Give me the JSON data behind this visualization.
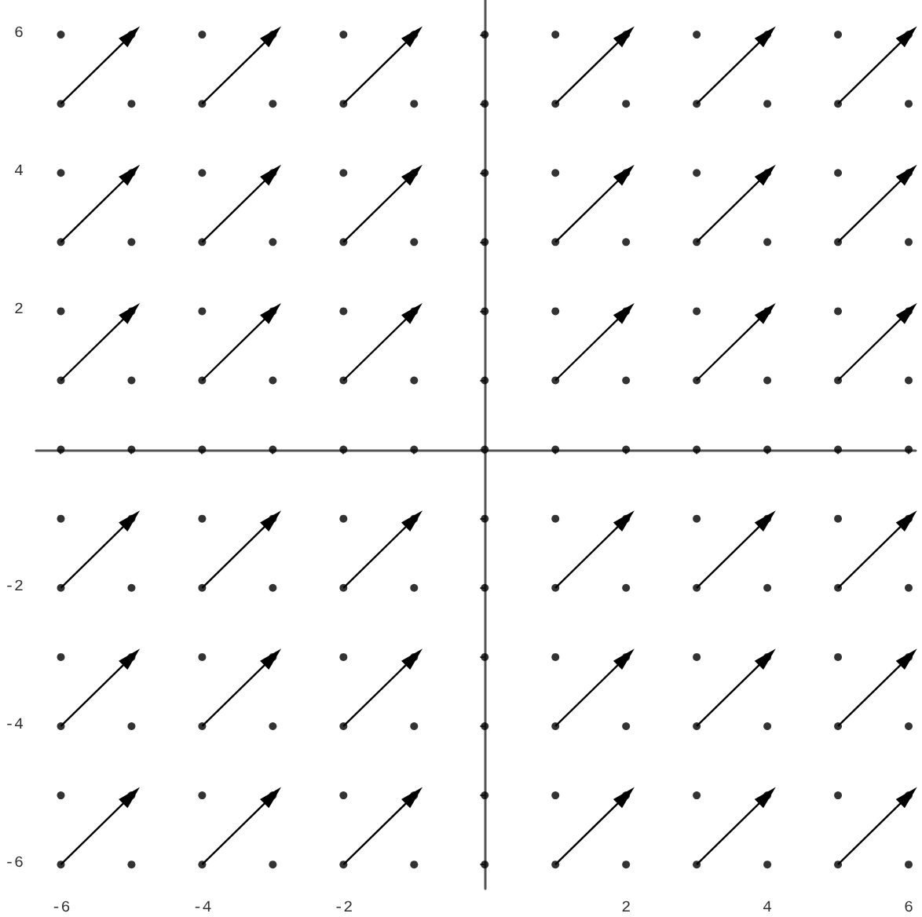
{
  "chart_data": {
    "type": "scatter",
    "xlim": [
      -6.35,
      6.1
    ],
    "ylim": [
      -6.35,
      6.5
    ],
    "xticks": [
      -6,
      {
        "value": -5,
        "label": null
      },
      -4,
      {
        "value": -3,
        "label": null
      },
      -2,
      {
        "value": -1,
        "label": null
      },
      {
        "value": 0,
        "label": null
      },
      {
        "value": 1,
        "label": null
      },
      2,
      {
        "value": 3,
        "label": null
      },
      4,
      {
        "value": 5,
        "label": null
      },
      6
    ],
    "yticks": [
      -6,
      {
        "value": -5,
        "label": null
      },
      -4,
      {
        "value": -3,
        "label": null
      },
      -2,
      {
        "value": -1,
        "label": null
      },
      {
        "value": 0,
        "label": null
      },
      {
        "value": 1,
        "label": null
      },
      2,
      {
        "value": 3,
        "label": null
      },
      4,
      {
        "value": 5,
        "label": null
      },
      6
    ],
    "series": [
      {
        "color": "#000000",
        "marker": "circle",
        "x": [
          -6,
          -5,
          -4,
          -3,
          -2,
          -1,
          0,
          1,
          2,
          3,
          4,
          5,
          6,
          -6,
          -5,
          -4,
          -3,
          -2,
          -1,
          0,
          1,
          2,
          3,
          4,
          5,
          6,
          -6,
          -5,
          -4,
          -3,
          -2,
          -1,
          0,
          1,
          2,
          3,
          4,
          5,
          6,
          -6,
          -5,
          -4,
          -3,
          -2,
          -1,
          0,
          1,
          2,
          3,
          4,
          5,
          6,
          -6,
          -5,
          -4,
          -3,
          -2,
          -1,
          0,
          1,
          2,
          3,
          4,
          5,
          6,
          -6,
          -5,
          -4,
          -3,
          -2,
          -1,
          0,
          1,
          2,
          3,
          4,
          5,
          6,
          -6,
          -5,
          -4,
          -3,
          -2,
          -1,
          0,
          1,
          2,
          3,
          4,
          5,
          6,
          -6,
          -5,
          -4,
          -3,
          -2,
          -1,
          0,
          1,
          2,
          3,
          4,
          5,
          6,
          -6,
          -5,
          -4,
          -3,
          -2,
          -1,
          0,
          1,
          2,
          3,
          4,
          5,
          6,
          -6,
          -5,
          -4,
          -3,
          -2,
          -1,
          0,
          1,
          2,
          3,
          4,
          5,
          6,
          -6,
          -5,
          -4,
          -3,
          -2,
          -1,
          0,
          1,
          2,
          3,
          4,
          5,
          6,
          -6,
          -5,
          -4,
          -3,
          -2,
          -1,
          0,
          1,
          2,
          3,
          4,
          5,
          6,
          -6,
          -5,
          -4,
          -3,
          -2,
          -1,
          0,
          1,
          2,
          3,
          4,
          5,
          6
        ],
        "values": [
          6,
          6,
          6,
          6,
          6,
          6,
          6,
          6,
          6,
          6,
          6,
          6,
          6,
          5,
          5,
          5,
          5,
          5,
          5,
          5,
          5,
          5,
          5,
          5,
          5,
          5,
          4,
          4,
          4,
          4,
          4,
          4,
          4,
          4,
          4,
          4,
          4,
          4,
          4,
          3,
          3,
          3,
          3,
          3,
          3,
          3,
          3,
          3,
          3,
          3,
          3,
          3,
          2,
          2,
          2,
          2,
          2,
          2,
          2,
          2,
          2,
          2,
          2,
          2,
          2,
          1,
          1,
          1,
          1,
          1,
          1,
          1,
          1,
          1,
          1,
          1,
          1,
          1,
          0,
          0,
          0,
          0,
          0,
          0,
          0,
          0,
          0,
          0,
          0,
          0,
          0,
          -1,
          -1,
          -1,
          -1,
          -1,
          -1,
          -1,
          -1,
          -1,
          -1,
          -1,
          -1,
          -1,
          -2,
          -2,
          -2,
          -2,
          -2,
          -2,
          -2,
          -2,
          -2,
          -2,
          -2,
          -2,
          -2,
          -3,
          -3,
          -3,
          -3,
          -3,
          -3,
          -3,
          -3,
          -3,
          -3,
          -3,
          -3,
          -3,
          -4,
          -4,
          -4,
          -4,
          -4,
          -4,
          -4,
          -4,
          -4,
          -4,
          -4,
          -4,
          -4,
          -5,
          -5,
          -5,
          -5,
          -5,
          -5,
          -5,
          -5,
          -5,
          -5,
          -5,
          -5,
          -5,
          -6,
          -6,
          -6,
          -6,
          -6,
          -6,
          -6,
          -6,
          -6,
          -6,
          -6,
          -6,
          -6
        ]
      },
      {
        "type": "line",
        "color": "#000000",
        "marker": "triangle",
        "x": [
          -6,
          -5
        ],
        "values": [
          5,
          6
        ]
      },
      {
        "type": "line",
        "color": "#000000",
        "marker": "triangle",
        "x": [
          -4,
          -3
        ],
        "values": [
          5,
          6
        ]
      },
      {
        "type": "line",
        "color": "#000000",
        "marker": "triangle",
        "x": [
          -2,
          -1
        ],
        "values": [
          5,
          6
        ]
      },
      {
        "type": "line",
        "color": "#000000",
        "marker": "triangle",
        "x": [
          1,
          2
        ],
        "values": [
          5,
          6
        ]
      },
      {
        "type": "line",
        "color": "#000000",
        "marker": "triangle",
        "x": [
          3,
          4
        ],
        "values": [
          5,
          6
        ]
      },
      {
        "type": "line",
        "color": "#000000",
        "marker": "triangle",
        "x": [
          5,
          6
        ],
        "values": [
          5,
          6
        ]
      },
      {
        "type": "line",
        "color": "#000000",
        "marker": "triangle",
        "x": [
          -6,
          -5
        ],
        "values": [
          3,
          4
        ]
      },
      {
        "type": "line",
        "color": "#000000",
        "marker": "triangle",
        "x": [
          -4,
          -3
        ],
        "values": [
          3,
          4
        ]
      },
      {
        "type": "line",
        "color": "#000000",
        "marker": "triangle",
        "x": [
          -2,
          -1
        ],
        "values": [
          3,
          4
        ]
      },
      {
        "type": "line",
        "color": "#000000",
        "marker": "triangle",
        "x": [
          1,
          2
        ],
        "values": [
          3,
          4
        ]
      },
      {
        "type": "line",
        "color": "#000000",
        "marker": "triangle",
        "x": [
          3,
          4
        ],
        "values": [
          3,
          4
        ]
      },
      {
        "type": "line",
        "color": "#000000",
        "marker": "triangle",
        "x": [
          5,
          6
        ],
        "values": [
          3,
          4
        ]
      },
      {
        "type": "line",
        "color": "#000000",
        "marker": "triangle",
        "x": [
          -6,
          -5
        ],
        "values": [
          1,
          2
        ]
      },
      {
        "type": "line",
        "color": "#000000",
        "marker": "triangle",
        "x": [
          -4,
          -3
        ],
        "values": [
          1,
          2
        ]
      },
      {
        "type": "line",
        "color": "#000000",
        "marker": "triangle",
        "x": [
          -2,
          -1
        ],
        "values": [
          1,
          2
        ]
      },
      {
        "type": "line",
        "color": "#000000",
        "marker": "triangle",
        "x": [
          1,
          2
        ],
        "values": [
          1,
          2
        ]
      },
      {
        "type": "line",
        "color": "#000000",
        "marker": "triangle",
        "x": [
          3,
          4
        ],
        "values": [
          1,
          2
        ]
      },
      {
        "type": "line",
        "color": "#000000",
        "marker": "triangle",
        "x": [
          5,
          6
        ],
        "values": [
          1,
          2
        ]
      },
      {
        "type": "line",
        "color": "#000000",
        "marker": "triangle",
        "x": [
          -6,
          -5
        ],
        "values": [
          -2,
          -1
        ]
      },
      {
        "type": "line",
        "color": "#000000",
        "marker": "triangle",
        "x": [
          -4,
          -3
        ],
        "values": [
          -2,
          -1
        ]
      },
      {
        "type": "line",
        "color": "#000000",
        "marker": "triangle",
        "x": [
          -2,
          -1
        ],
        "values": [
          -2,
          -1
        ]
      },
      {
        "type": "line",
        "color": "#000000",
        "marker": "triangle",
        "x": [
          1,
          2
        ],
        "values": [
          -2,
          -1
        ]
      },
      {
        "type": "line",
        "color": "#000000",
        "marker": "triangle",
        "x": [
          3,
          4
        ],
        "values": [
          -2,
          -1
        ]
      },
      {
        "type": "line",
        "color": "#000000",
        "marker": "triangle",
        "x": [
          5,
          6
        ],
        "values": [
          -2,
          -1
        ]
      },
      {
        "type": "line",
        "color": "#000000",
        "marker": "triangle",
        "x": [
          -6,
          -5
        ],
        "values": [
          -4,
          -3
        ]
      },
      {
        "type": "line",
        "color": "#000000",
        "marker": "triangle",
        "x": [
          -4,
          -3
        ],
        "values": [
          -4,
          -3
        ]
      },
      {
        "type": "line",
        "color": "#000000",
        "marker": "triangle",
        "x": [
          -2,
          -1
        ],
        "values": [
          -4,
          -3
        ]
      },
      {
        "type": "line",
        "color": "#000000",
        "marker": "triangle",
        "x": [
          1,
          2
        ],
        "values": [
          -4,
          -3
        ]
      },
      {
        "type": "line",
        "color": "#000000",
        "marker": "triangle",
        "x": [
          3,
          4
        ],
        "values": [
          -4,
          -3
        ]
      },
      {
        "type": "line",
        "color": "#000000",
        "marker": "triangle",
        "x": [
          5,
          6
        ],
        "values": [
          -4,
          -3
        ]
      },
      {
        "type": "line",
        "color": "#000000",
        "marker": "triangle",
        "x": [
          -6,
          -5
        ],
        "values": [
          -6,
          -5
        ]
      },
      {
        "type": "line",
        "color": "#000000",
        "marker": "triangle",
        "x": [
          -4,
          -3
        ],
        "values": [
          -6,
          -5
        ]
      },
      {
        "type": "line",
        "color": "#000000",
        "marker": "triangle",
        "x": [
          -2,
          -1
        ],
        "values": [
          -6,
          -5
        ]
      },
      {
        "type": "line",
        "color": "#000000",
        "marker": "triangle",
        "x": [
          1,
          2
        ],
        "values": [
          -6,
          -5
        ]
      },
      {
        "type": "line",
        "color": "#000000",
        "marker": "triangle",
        "x": [
          3,
          4
        ],
        "values": [
          -6,
          -5
        ]
      },
      {
        "type": "line",
        "color": "#000000",
        "marker": "triangle",
        "x": [
          5,
          6
        ],
        "values": [
          -6,
          -5
        ]
      }
    ]
  }
}
